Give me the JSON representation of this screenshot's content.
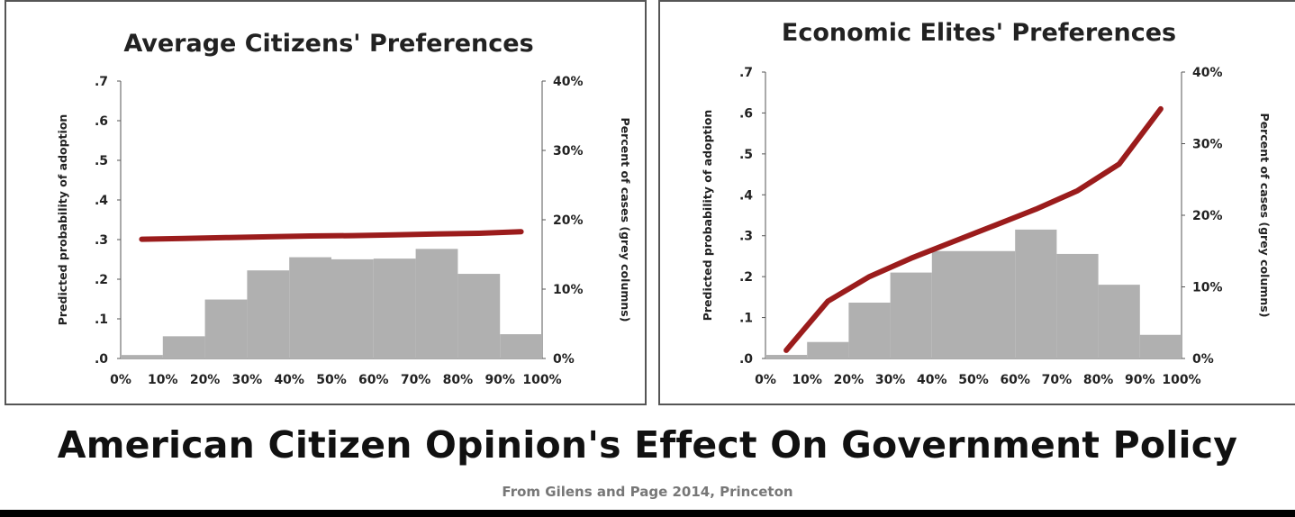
{
  "main_title": "American Citizen Opinion's Effect On Government Policy",
  "source_note": "From Gilens and Page 2014, Princeton",
  "colors": {
    "line": "#9b1c1c",
    "bars": "#b0b0b0",
    "axis": "#555555"
  },
  "chart_data": [
    {
      "type": "bar+line",
      "title": "Average Citizens' Preferences",
      "left_ylabel": "Predicted probability of adoption",
      "right_ylabel": "Percent of cases (grey columns)",
      "left_ylim": [
        0,
        0.7
      ],
      "left_yticks": [
        ".0",
        ".1",
        ".2",
        ".3",
        ".4",
        ".5",
        ".6",
        ".7"
      ],
      "right_ylim": [
        0,
        40
      ],
      "right_yticks": [
        "0%",
        "10%",
        "20%",
        "30%",
        "40%"
      ],
      "xticks": [
        "0%",
        "10%",
        "20%",
        "30%",
        "40%",
        "50%",
        "60%",
        "70%",
        "80%",
        "90%",
        "100%"
      ],
      "bars": {
        "bins": [
          "0-10%",
          "10-20%",
          "20-30%",
          "30-40%",
          "40-50%",
          "50-60%",
          "60-70%",
          "70-80%",
          "80-90%",
          "90-100%"
        ],
        "values": [
          0.5,
          3.2,
          8.5,
          12.7,
          14.6,
          14.3,
          14.4,
          15.8,
          12.2,
          3.5
        ]
      },
      "line": {
        "x": [
          5,
          15,
          25,
          35,
          45,
          55,
          65,
          75,
          85,
          95
        ],
        "y": [
          0.301,
          0.303,
          0.305,
          0.307,
          0.309,
          0.31,
          0.312,
          0.314,
          0.316,
          0.32
        ]
      },
      "grid": false
    },
    {
      "type": "bar+line",
      "title": "Economic Elites' Preferences",
      "left_ylabel": "Predicted probability of adoption",
      "right_ylabel": "Percent of cases (grey columns)",
      "left_ylim": [
        0,
        0.7
      ],
      "left_yticks": [
        ".0",
        ".1",
        ".2",
        ".3",
        ".4",
        ".5",
        ".6",
        ".7"
      ],
      "right_ylim": [
        0,
        40
      ],
      "right_yticks": [
        "0%",
        "10%",
        "20%",
        "30%",
        "40%"
      ],
      "xticks": [
        "0%",
        "10%",
        "20%",
        "30%",
        "40%",
        "50%",
        "60%",
        "70%",
        "80%",
        "90%",
        "100%"
      ],
      "bars": {
        "bins": [
          "0-10%",
          "10-20%",
          "20-30%",
          "30-40%",
          "40-50%",
          "50-60%",
          "60-70%",
          "70-80%",
          "80-90%",
          "90-100%"
        ],
        "values": [
          0.5,
          2.3,
          7.8,
          12.0,
          15.0,
          15.0,
          18.0,
          14.6,
          10.3,
          3.3
        ]
      },
      "line": {
        "x": [
          5,
          15,
          25,
          35,
          45,
          55,
          65,
          75,
          85,
          95
        ],
        "y": [
          0.02,
          0.14,
          0.2,
          0.245,
          0.285,
          0.325,
          0.365,
          0.41,
          0.475,
          0.61
        ]
      },
      "grid": false
    }
  ]
}
